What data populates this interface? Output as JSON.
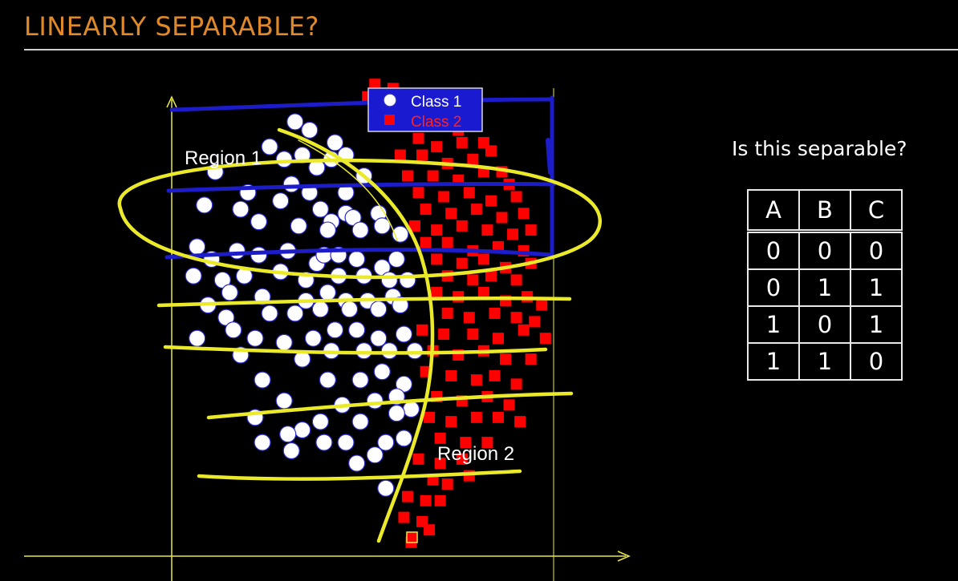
{
  "slide": {
    "title": "LINEARLY SEPARABLE?",
    "question": "Is this separable?"
  },
  "colors": {
    "title": "#e0892a",
    "axis": "#e8e84a",
    "class1_fill": "#ffffff",
    "class1_edge": "#2a2acc",
    "class2": "#ff0000",
    "annotation_yellow": "#eaea2a",
    "annotation_blue": "#1c1cc8",
    "legend_bg": "#1a1ad0"
  },
  "truth_table": {
    "headers": [
      "A",
      "B",
      "C"
    ],
    "rows": [
      [
        "0",
        "0",
        "0"
      ],
      [
        "0",
        "1",
        "1"
      ],
      [
        "1",
        "0",
        "1"
      ],
      [
        "1",
        "1",
        "0"
      ]
    ]
  },
  "chart_data": {
    "type": "scatter",
    "title": "",
    "xlabel": "",
    "ylabel": "",
    "xlim": [
      -0.04,
      1.21
    ],
    "ylim": [
      -0.04,
      1.31
    ],
    "grid": false,
    "legend": {
      "placement": "top-center",
      "entries": [
        "Class 1",
        "Class 2"
      ]
    },
    "region_labels": [
      "Region 1",
      "Region 2"
    ],
    "series": [
      {
        "name": "Class 1",
        "marker": "circle",
        "points": [
          [
            0.34,
            1.02
          ],
          [
            0.38,
            1.0
          ],
          [
            0.45,
            0.97
          ],
          [
            0.27,
            0.96
          ],
          [
            0.31,
            0.93
          ],
          [
            0.36,
            0.94
          ],
          [
            0.44,
            0.93
          ],
          [
            0.48,
            0.94
          ],
          [
            0.12,
            0.9
          ],
          [
            0.33,
            0.87
          ],
          [
            0.4,
            0.91
          ],
          [
            0.53,
            0.89
          ],
          [
            0.21,
            0.85
          ],
          [
            0.38,
            0.85
          ],
          [
            0.48,
            0.85
          ],
          [
            0.09,
            0.82
          ],
          [
            0.19,
            0.81
          ],
          [
            0.3,
            0.83
          ],
          [
            0.41,
            0.81
          ],
          [
            0.48,
            0.8
          ],
          [
            0.57,
            0.8
          ],
          [
            0.24,
            0.78
          ],
          [
            0.35,
            0.77
          ],
          [
            0.44,
            0.78
          ],
          [
            0.5,
            0.79
          ],
          [
            0.43,
            0.76
          ],
          [
            0.52,
            0.76
          ],
          [
            0.58,
            0.77
          ],
          [
            0.63,
            0.75
          ],
          [
            0.07,
            0.72
          ],
          [
            0.11,
            0.69
          ],
          [
            0.18,
            0.71
          ],
          [
            0.24,
            0.7
          ],
          [
            0.32,
            0.71
          ],
          [
            0.4,
            0.68
          ],
          [
            0.42,
            0.7
          ],
          [
            0.46,
            0.7
          ],
          [
            0.51,
            0.69
          ],
          [
            0.58,
            0.67
          ],
          [
            0.62,
            0.69
          ],
          [
            0.06,
            0.65
          ],
          [
            0.14,
            0.64
          ],
          [
            0.2,
            0.65
          ],
          [
            0.3,
            0.66
          ],
          [
            0.37,
            0.64
          ],
          [
            0.46,
            0.65
          ],
          [
            0.53,
            0.65
          ],
          [
            0.6,
            0.64
          ],
          [
            0.65,
            0.64
          ],
          [
            0.1,
            0.58
          ],
          [
            0.16,
            0.61
          ],
          [
            0.25,
            0.6
          ],
          [
            0.37,
            0.59
          ],
          [
            0.43,
            0.61
          ],
          [
            0.48,
            0.59
          ],
          [
            0.54,
            0.59
          ],
          [
            0.61,
            0.6
          ],
          [
            0.15,
            0.55
          ],
          [
            0.27,
            0.56
          ],
          [
            0.34,
            0.56
          ],
          [
            0.41,
            0.57
          ],
          [
            0.49,
            0.57
          ],
          [
            0.57,
            0.57
          ],
          [
            0.63,
            0.58
          ],
          [
            0.07,
            0.5
          ],
          [
            0.17,
            0.52
          ],
          [
            0.23,
            0.5
          ],
          [
            0.31,
            0.49
          ],
          [
            0.39,
            0.5
          ],
          [
            0.45,
            0.52
          ],
          [
            0.51,
            0.52
          ],
          [
            0.57,
            0.5
          ],
          [
            0.64,
            0.51
          ],
          [
            0.19,
            0.46
          ],
          [
            0.36,
            0.45
          ],
          [
            0.44,
            0.47
          ],
          [
            0.53,
            0.47
          ],
          [
            0.6,
            0.47
          ],
          [
            0.67,
            0.47
          ],
          [
            0.43,
            0.4
          ],
          [
            0.52,
            0.4
          ],
          [
            0.58,
            0.42
          ],
          [
            0.64,
            0.39
          ],
          [
            0.25,
            0.4
          ],
          [
            0.31,
            0.35
          ],
          [
            0.47,
            0.34
          ],
          [
            0.56,
            0.35
          ],
          [
            0.62,
            0.36
          ],
          [
            0.66,
            0.33
          ],
          [
            0.23,
            0.31
          ],
          [
            0.36,
            0.28
          ],
          [
            0.41,
            0.3
          ],
          [
            0.52,
            0.3
          ],
          [
            0.62,
            0.32
          ],
          [
            0.25,
            0.25
          ],
          [
            0.32,
            0.27
          ],
          [
            0.42,
            0.25
          ],
          [
            0.48,
            0.25
          ],
          [
            0.59,
            0.25
          ],
          [
            0.33,
            0.23
          ],
          [
            0.64,
            0.26
          ],
          [
            0.51,
            0.2
          ],
          [
            0.56,
            0.22
          ],
          [
            0.59,
            0.14
          ]
        ]
      },
      {
        "name": "Class 2",
        "marker": "square",
        "points": [
          [
            0.56,
            1.11
          ],
          [
            0.54,
            1.08
          ],
          [
            0.61,
            1.1
          ],
          [
            0.63,
            1.07
          ],
          [
            0.57,
            1.05
          ],
          [
            0.67,
            1.05
          ],
          [
            0.71,
            1.06
          ],
          [
            0.77,
            1.05
          ],
          [
            0.6,
            1.03
          ],
          [
            0.65,
            1.02
          ],
          [
            0.72,
            1.01
          ],
          [
            0.79,
            1.0
          ],
          [
            0.68,
            0.98
          ],
          [
            0.73,
            0.96
          ],
          [
            0.8,
            0.97
          ],
          [
            0.86,
            0.97
          ],
          [
            0.63,
            0.94
          ],
          [
            0.69,
            0.94
          ],
          [
            0.76,
            0.92
          ],
          [
            0.83,
            0.93
          ],
          [
            0.88,
            0.95
          ],
          [
            0.91,
            0.9
          ],
          [
            0.65,
            0.89
          ],
          [
            0.72,
            0.89
          ],
          [
            0.79,
            0.88
          ],
          [
            0.86,
            0.9
          ],
          [
            0.93,
            0.87
          ],
          [
            0.68,
            0.85
          ],
          [
            0.75,
            0.84
          ],
          [
            0.82,
            0.85
          ],
          [
            0.88,
            0.83
          ],
          [
            0.95,
            0.84
          ],
          [
            0.7,
            0.81
          ],
          [
            0.77,
            0.8
          ],
          [
            0.84,
            0.81
          ],
          [
            0.91,
            0.79
          ],
          [
            0.97,
            0.8
          ],
          [
            0.67,
            0.77
          ],
          [
            0.73,
            0.76
          ],
          [
            0.8,
            0.77
          ],
          [
            0.87,
            0.76
          ],
          [
            0.94,
            0.75
          ],
          [
            0.99,
            0.76
          ],
          [
            0.7,
            0.73
          ],
          [
            0.76,
            0.73
          ],
          [
            0.83,
            0.71
          ],
          [
            0.9,
            0.72
          ],
          [
            0.97,
            0.71
          ],
          [
            0.73,
            0.69
          ],
          [
            0.8,
            0.68
          ],
          [
            0.86,
            0.69
          ],
          [
            0.92,
            0.67
          ],
          [
            0.99,
            0.68
          ],
          [
            0.76,
            0.65
          ],
          [
            0.83,
            0.64
          ],
          [
            0.88,
            0.65
          ],
          [
            0.95,
            0.64
          ],
          [
            0.73,
            0.61
          ],
          [
            0.79,
            0.6
          ],
          [
            0.86,
            0.61
          ],
          [
            0.92,
            0.59
          ],
          [
            0.98,
            0.6
          ],
          [
            1.02,
            0.58
          ],
          [
            0.76,
            0.56
          ],
          [
            0.82,
            0.55
          ],
          [
            0.89,
            0.56
          ],
          [
            0.95,
            0.55
          ],
          [
            1.0,
            0.54
          ],
          [
            0.69,
            0.52
          ],
          [
            0.75,
            0.51
          ],
          [
            0.83,
            0.51
          ],
          [
            0.9,
            0.5
          ],
          [
            0.97,
            0.52
          ],
          [
            1.03,
            0.5
          ],
          [
            0.72,
            0.47
          ],
          [
            0.79,
            0.46
          ],
          [
            0.86,
            0.47
          ],
          [
            0.92,
            0.45
          ],
          [
            0.99,
            0.45
          ],
          [
            0.7,
            0.42
          ],
          [
            0.77,
            0.41
          ],
          [
            0.84,
            0.4
          ],
          [
            0.89,
            0.41
          ],
          [
            0.95,
            0.39
          ],
          [
            0.73,
            0.36
          ],
          [
            0.8,
            0.35
          ],
          [
            0.87,
            0.36
          ],
          [
            0.93,
            0.34
          ],
          [
            0.71,
            0.31
          ],
          [
            0.77,
            0.3
          ],
          [
            0.84,
            0.31
          ],
          [
            0.9,
            0.31
          ],
          [
            0.96,
            0.3
          ],
          [
            0.74,
            0.26
          ],
          [
            0.81,
            0.25
          ],
          [
            0.87,
            0.25
          ],
          [
            0.68,
            0.21
          ],
          [
            0.74,
            0.2
          ],
          [
            0.8,
            0.21
          ],
          [
            0.72,
            0.16
          ],
          [
            0.76,
            0.15
          ],
          [
            0.82,
            0.17
          ],
          [
            0.65,
            0.12
          ],
          [
            0.7,
            0.11
          ],
          [
            0.74,
            0.11
          ],
          [
            0.64,
            0.07
          ],
          [
            0.69,
            0.06
          ],
          [
            0.71,
            0.04
          ],
          [
            0.66,
            0.01
          ]
        ]
      }
    ]
  }
}
